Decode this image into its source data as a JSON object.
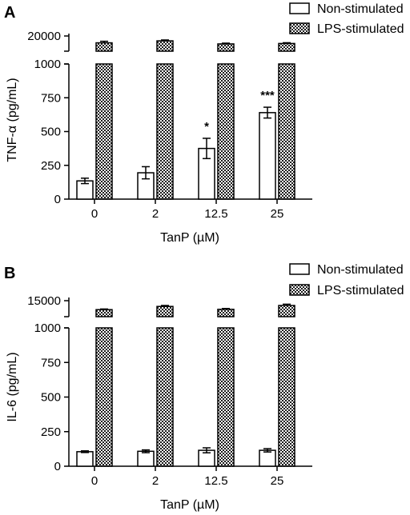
{
  "figure": {
    "chart_data": [
      {
        "type": "bar",
        "panel": "A",
        "categories": [
          "0",
          "2",
          "12.5",
          "25"
        ],
        "xlabel": "TanP (µM)",
        "ylabel": "TNF-α (pg/mL)",
        "ylim": [
          0,
          20000
        ],
        "axis_break": {
          "lower_range": [
            0,
            1000
          ],
          "upper_ticks": [
            20000
          ]
        },
        "yticks": [
          "0",
          "250",
          "500",
          "750",
          "1000",
          "20000"
        ],
        "legend_position": "top-right",
        "series": [
          {
            "name": "Non-stimulated",
            "fill": "white",
            "values": [
              135,
              195,
              375,
              640
            ],
            "errors": [
              20,
              45,
              75,
              40
            ],
            "significance": [
              "",
              "",
              "*",
              "***"
            ]
          },
          {
            "name": "LPS-stimulated",
            "fill": "checkered",
            "values": [
              15800,
              16700,
              15300,
              15500
            ],
            "errors": [
              700,
              400,
              350,
              350
            ]
          }
        ]
      },
      {
        "type": "bar",
        "panel": "B",
        "categories": [
          "0",
          "2",
          "12.5",
          "25"
        ],
        "xlabel": "TanP (µM)",
        "ylabel": "IL-6 (pg/mL)",
        "ylim": [
          0,
          15000
        ],
        "axis_break": {
          "lower_range": [
            0,
            1000
          ],
          "upper_ticks": [
            15000
          ]
        },
        "yticks": [
          "0",
          "250",
          "500",
          "750",
          "1000",
          "15000"
        ],
        "legend_position": "top-right",
        "series": [
          {
            "name": "Non-stimulated",
            "fill": "white",
            "values": [
              105,
              108,
              115,
              115
            ],
            "errors": [
              6,
              10,
              18,
              12
            ]
          },
          {
            "name": "LPS-stimulated",
            "fill": "checkered",
            "values": [
              11200,
              12200,
              11300,
              12500
            ],
            "errors": [
              200,
              300,
              250,
              400
            ]
          }
        ]
      }
    ],
    "colors": {
      "bar_outline": "#000000",
      "non_stimulated_fill": "#ffffff",
      "lps_pattern_dark": "#1a1a1a",
      "lps_pattern_light": "#ffffff"
    }
  }
}
